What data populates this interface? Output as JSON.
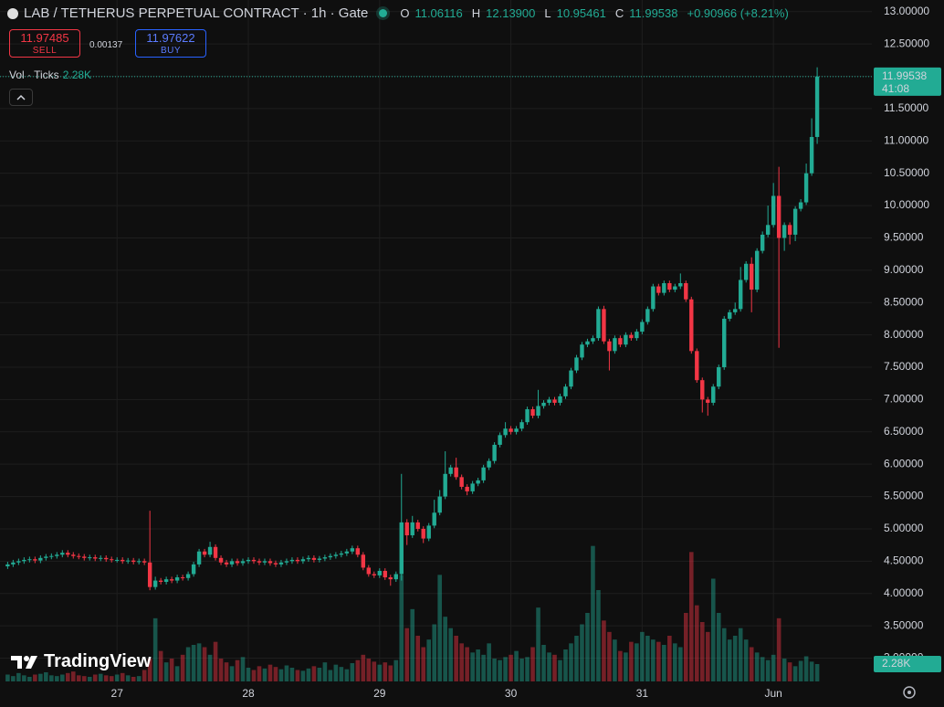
{
  "header": {
    "symbol": "LAB / TETHERUS PERPETUAL CONTRACT · 1h · Gate",
    "ohlc": [
      {
        "key": "O",
        "value": "11.06116"
      },
      {
        "key": "H",
        "value": "12.13900"
      },
      {
        "key": "L",
        "value": "10.95461"
      },
      {
        "key": "C",
        "value": "11.99538"
      }
    ],
    "change": "+0.90966 (+8.21%)"
  },
  "trade": {
    "sell_price": "11.97485",
    "sell_label": "SELL",
    "spread": "0.00137",
    "buy_price": "11.97622",
    "buy_label": "BUY"
  },
  "volume_legend": {
    "label": "Vol · Ticks",
    "value": "2.28K"
  },
  "brand": "TradingView",
  "chart_data": {
    "type": "candlestick",
    "candles": [
      [
        4.42,
        4.49,
        4.38,
        4.45,
        900
      ],
      [
        4.45,
        4.52,
        4.41,
        4.48,
        700
      ],
      [
        4.48,
        4.54,
        4.44,
        4.5,
        1100
      ],
      [
        4.5,
        4.56,
        4.46,
        4.52,
        800
      ],
      [
        4.52,
        4.57,
        4.48,
        4.53,
        600
      ],
      [
        4.53,
        4.57,
        4.47,
        4.51,
        900
      ],
      [
        4.51,
        4.59,
        4.47,
        4.55,
        1000
      ],
      [
        4.55,
        4.61,
        4.51,
        4.57,
        1200
      ],
      [
        4.57,
        4.62,
        4.53,
        4.58,
        800
      ],
      [
        4.58,
        4.64,
        4.54,
        4.6,
        700
      ],
      [
        4.6,
        4.67,
        4.56,
        4.63,
        900
      ],
      [
        4.63,
        4.67,
        4.56,
        4.6,
        1100
      ],
      [
        4.6,
        4.64,
        4.54,
        4.58,
        1300
      ],
      [
        4.58,
        4.62,
        4.53,
        4.57,
        800
      ],
      [
        4.57,
        4.61,
        4.51,
        4.55,
        700
      ],
      [
        4.55,
        4.6,
        4.51,
        4.56,
        600
      ],
      [
        4.56,
        4.6,
        4.5,
        4.54,
        900
      ],
      [
        4.54,
        4.59,
        4.5,
        4.55,
        1000
      ],
      [
        4.55,
        4.59,
        4.49,
        4.53,
        800
      ],
      [
        4.53,
        4.57,
        4.48,
        4.52,
        700
      ],
      [
        4.52,
        4.56,
        4.48,
        4.52,
        900
      ],
      [
        4.52,
        4.56,
        4.46,
        4.5,
        1100
      ],
      [
        4.5,
        4.55,
        4.46,
        4.51,
        800
      ],
      [
        4.51,
        4.55,
        4.45,
        4.49,
        600
      ],
      [
        4.49,
        4.54,
        4.45,
        4.5,
        700
      ],
      [
        4.5,
        4.54,
        4.44,
        4.48,
        1500
      ],
      [
        4.48,
        5.28,
        4.05,
        4.1,
        3000
      ],
      [
        4.1,
        4.26,
        4.06,
        4.2,
        8300
      ],
      [
        4.2,
        4.24,
        4.14,
        4.18,
        4000
      ],
      [
        4.18,
        4.26,
        4.14,
        4.22,
        2500
      ],
      [
        4.22,
        4.26,
        4.16,
        4.2,
        3000
      ],
      [
        4.2,
        4.29,
        4.16,
        4.25,
        2000
      ],
      [
        4.25,
        4.29,
        4.2,
        4.24,
        3500
      ],
      [
        4.24,
        4.34,
        4.2,
        4.3,
        4500
      ],
      [
        4.3,
        4.49,
        4.26,
        4.45,
        4800
      ],
      [
        4.45,
        4.69,
        4.41,
        4.65,
        5000
      ],
      [
        4.65,
        4.69,
        4.56,
        4.6,
        4500
      ],
      [
        4.6,
        4.8,
        4.56,
        4.72,
        3500
      ],
      [
        4.72,
        4.76,
        4.51,
        4.55,
        5200
      ],
      [
        4.55,
        4.59,
        4.44,
        4.48,
        3000
      ],
      [
        4.48,
        4.52,
        4.41,
        4.45,
        2500
      ],
      [
        4.45,
        4.54,
        4.41,
        4.5,
        2000
      ],
      [
        4.5,
        4.54,
        4.43,
        4.47,
        2800
      ],
      [
        4.47,
        4.54,
        4.43,
        4.5,
        3200
      ],
      [
        4.5,
        4.56,
        4.46,
        4.52,
        1800
      ],
      [
        4.52,
        4.56,
        4.46,
        4.5,
        1500
      ],
      [
        4.5,
        4.54,
        4.44,
        4.48,
        2000
      ],
      [
        4.48,
        4.54,
        4.44,
        4.5,
        1700
      ],
      [
        4.5,
        4.54,
        4.43,
        4.47,
        2200
      ],
      [
        4.47,
        4.51,
        4.41,
        4.45,
        1900
      ],
      [
        4.45,
        4.52,
        4.41,
        4.48,
        1600
      ],
      [
        4.48,
        4.54,
        4.44,
        4.5,
        2100
      ],
      [
        4.5,
        4.56,
        4.46,
        4.52,
        1800
      ],
      [
        4.52,
        4.56,
        4.46,
        4.5,
        1500
      ],
      [
        4.5,
        4.57,
        4.46,
        4.53,
        1400
      ],
      [
        4.53,
        4.59,
        4.49,
        4.55,
        1700
      ],
      [
        4.55,
        4.59,
        4.48,
        4.52,
        2000
      ],
      [
        4.52,
        4.58,
        4.48,
        4.54,
        1800
      ],
      [
        4.54,
        4.6,
        4.5,
        4.56,
        2500
      ],
      [
        4.56,
        4.62,
        4.52,
        4.58,
        1500
      ],
      [
        4.58,
        4.64,
        4.54,
        4.6,
        2200
      ],
      [
        4.6,
        4.66,
        4.56,
        4.62,
        1900
      ],
      [
        4.62,
        4.69,
        4.58,
        4.65,
        1600
      ],
      [
        4.65,
        4.74,
        4.61,
        4.7,
        2400
      ],
      [
        4.7,
        4.74,
        4.56,
        4.6,
        2800
      ],
      [
        4.6,
        4.64,
        4.36,
        4.4,
        3500
      ],
      [
        4.4,
        4.44,
        4.26,
        4.3,
        3000
      ],
      [
        4.3,
        4.34,
        4.24,
        4.28,
        2600
      ],
      [
        4.28,
        4.39,
        4.24,
        4.35,
        2200
      ],
      [
        4.35,
        4.39,
        4.21,
        4.25,
        2500
      ],
      [
        4.25,
        4.29,
        4.12,
        4.22,
        2100
      ],
      [
        4.22,
        4.34,
        4.18,
        4.3,
        2800
      ],
      [
        4.3,
        5.85,
        4.2,
        5.1,
        14000
      ],
      [
        5.1,
        5.15,
        4.75,
        4.9,
        7000
      ],
      [
        4.9,
        5.2,
        4.86,
        5.1,
        9500
      ],
      [
        5.1,
        5.14,
        4.96,
        5.0,
        6000
      ],
      [
        5.0,
        5.04,
        4.78,
        4.85,
        4500
      ],
      [
        4.85,
        5.09,
        4.81,
        5.05,
        5500
      ],
      [
        5.05,
        5.45,
        5.01,
        5.25,
        7500
      ],
      [
        5.25,
        5.6,
        5.21,
        5.5,
        14000
      ],
      [
        5.5,
        6.2,
        5.46,
        5.85,
        8500
      ],
      [
        5.85,
        5.99,
        5.81,
        5.95,
        7000
      ],
      [
        5.95,
        6.1,
        5.76,
        5.8,
        6000
      ],
      [
        5.8,
        5.84,
        5.61,
        5.65,
        5000
      ],
      [
        5.65,
        5.69,
        5.52,
        5.58,
        4500
      ],
      [
        5.58,
        5.74,
        5.54,
        5.7,
        3800
      ],
      [
        5.7,
        5.79,
        5.66,
        5.75,
        4200
      ],
      [
        5.75,
        5.99,
        5.71,
        5.95,
        3500
      ],
      [
        5.95,
        6.09,
        5.91,
        6.05,
        5000
      ],
      [
        6.05,
        6.34,
        6.01,
        6.3,
        3000
      ],
      [
        6.3,
        6.49,
        6.26,
        6.45,
        2800
      ],
      [
        6.45,
        6.65,
        6.41,
        6.55,
        3200
      ],
      [
        6.55,
        6.59,
        6.46,
        6.5,
        3500
      ],
      [
        6.5,
        6.59,
        6.46,
        6.55,
        4000
      ],
      [
        6.55,
        6.69,
        6.51,
        6.65,
        3000
      ],
      [
        6.65,
        6.89,
        6.61,
        6.85,
        3200
      ],
      [
        6.85,
        6.89,
        6.71,
        6.75,
        4500
      ],
      [
        6.75,
        7.15,
        6.71,
        6.9,
        9700
      ],
      [
        6.9,
        6.99,
        6.86,
        6.95,
        4800
      ],
      [
        6.95,
        7.04,
        6.91,
        7.0,
        3800
      ],
      [
        7.0,
        7.04,
        6.91,
        6.95,
        3500
      ],
      [
        6.95,
        7.09,
        6.91,
        7.05,
        2800
      ],
      [
        7.05,
        7.24,
        7.01,
        7.2,
        4200
      ],
      [
        7.2,
        7.49,
        7.16,
        7.45,
        5000
      ],
      [
        7.45,
        7.69,
        7.41,
        7.65,
        6000
      ],
      [
        7.65,
        7.89,
        7.61,
        7.85,
        7500
      ],
      [
        7.85,
        7.94,
        7.81,
        7.9,
        9000
      ],
      [
        7.9,
        7.99,
        7.86,
        7.95,
        17800
      ],
      [
        7.95,
        8.44,
        7.91,
        8.4,
        12000
      ],
      [
        8.4,
        8.45,
        7.86,
        7.9,
        8000
      ],
      [
        7.9,
        7.94,
        7.45,
        7.75,
        6500
      ],
      [
        7.75,
        7.99,
        7.71,
        7.95,
        5500
      ],
      [
        7.95,
        7.99,
        7.81,
        7.85,
        4000
      ],
      [
        7.85,
        8.04,
        7.81,
        8.0,
        3800
      ],
      [
        8.0,
        8.04,
        7.91,
        7.95,
        5200
      ],
      [
        7.95,
        8.09,
        7.91,
        8.05,
        5000
      ],
      [
        8.05,
        8.24,
        8.01,
        8.2,
        6500
      ],
      [
        8.2,
        8.44,
        8.16,
        8.4,
        6000
      ],
      [
        8.4,
        8.79,
        8.36,
        8.75,
        5500
      ],
      [
        8.75,
        8.79,
        8.61,
        8.65,
        5200
      ],
      [
        8.65,
        8.84,
        8.61,
        8.8,
        4800
      ],
      [
        8.8,
        8.84,
        8.66,
        8.7,
        6000
      ],
      [
        8.7,
        8.79,
        8.66,
        8.75,
        5000
      ],
      [
        8.75,
        8.95,
        8.71,
        8.8,
        4500
      ],
      [
        8.8,
        8.84,
        8.51,
        8.55,
        9000
      ],
      [
        8.55,
        8.59,
        7.71,
        7.75,
        17000
      ],
      [
        7.75,
        7.79,
        7.26,
        7.3,
        10000
      ],
      [
        7.3,
        7.34,
        6.8,
        7.0,
        7800
      ],
      [
        7.0,
        7.04,
        6.75,
        6.95,
        6500
      ],
      [
        6.95,
        7.24,
        6.91,
        7.2,
        13500
      ],
      [
        7.2,
        7.54,
        7.16,
        7.5,
        9000
      ],
      [
        7.5,
        8.29,
        7.46,
        8.25,
        7000
      ],
      [
        8.25,
        8.39,
        8.21,
        8.35,
        5500
      ],
      [
        8.35,
        8.5,
        8.31,
        8.4,
        6000
      ],
      [
        8.4,
        9.05,
        8.36,
        8.85,
        7000
      ],
      [
        8.85,
        9.14,
        8.81,
        9.1,
        5500
      ],
      [
        9.1,
        9.2,
        8.35,
        8.7,
        4500
      ],
      [
        8.7,
        9.34,
        8.66,
        9.3,
        3800
      ],
      [
        9.3,
        9.6,
        9.26,
        9.55,
        3200
      ],
      [
        9.55,
        10.0,
        9.51,
        9.7,
        2800
      ],
      [
        9.7,
        10.35,
        9.66,
        10.15,
        3500
      ],
      [
        10.15,
        10.6,
        7.8,
        9.5,
        8300
      ],
      [
        9.5,
        9.74,
        9.3,
        9.7,
        3000
      ],
      [
        9.7,
        9.74,
        9.4,
        9.55,
        2500
      ],
      [
        9.55,
        9.99,
        9.45,
        9.95,
        2000
      ],
      [
        9.95,
        10.1,
        9.91,
        10.05,
        2700
      ],
      [
        10.05,
        10.65,
        10.01,
        10.5,
        3300
      ],
      [
        10.5,
        11.35,
        10.46,
        11.06116,
        2600
      ],
      [
        11.06116,
        12.139,
        10.95461,
        11.99538,
        2280
      ]
    ],
    "xlim": [
      -1.4,
      158
    ],
    "xticks": [
      {
        "value": 20,
        "label": "27"
      },
      {
        "value": 44,
        "label": "28"
      },
      {
        "value": 68,
        "label": "29"
      },
      {
        "value": 92,
        "label": "30"
      },
      {
        "value": 116,
        "label": "31"
      },
      {
        "value": 140,
        "label": "Jun"
      }
    ],
    "ylim": [
      2.64,
      13.18
    ],
    "yticks": [
      {
        "value": 13,
        "label": "13.00000"
      },
      {
        "value": 12.5,
        "label": "12.50000"
      },
      {
        "value": 12,
        "label": "12.00000"
      },
      {
        "value": 11.5,
        "label": "11.50000"
      },
      {
        "value": 11,
        "label": "11.00000"
      },
      {
        "value": 10.5,
        "label": "10.50000"
      },
      {
        "value": 10,
        "label": "10.00000"
      },
      {
        "value": 9.5,
        "label": "9.50000"
      },
      {
        "value": 9,
        "label": "9.00000"
      },
      {
        "value": 8.5,
        "label": "8.50000"
      },
      {
        "value": 8,
        "label": "8.00000"
      },
      {
        "value": 7.5,
        "label": "7.50000"
      },
      {
        "value": 7,
        "label": "7.00000"
      },
      {
        "value": 6.5,
        "label": "6.50000"
      },
      {
        "value": 6,
        "label": "6.00000"
      },
      {
        "value": 5.5,
        "label": "5.50000"
      },
      {
        "value": 5,
        "label": "5.00000"
      },
      {
        "value": 4.5,
        "label": "4.50000"
      },
      {
        "value": 4,
        "label": "4.00000"
      },
      {
        "value": 3.5,
        "label": "3.50000"
      },
      {
        "value": 3,
        "label": "3.00000"
      }
    ],
    "volume_ylim": [
      0,
      20400
    ],
    "up_color": "#22ab94",
    "down_color": "#f23645",
    "grid": true,
    "last_price_label": "11.99538",
    "countdown": "41:08",
    "volume_label": "2.28K"
  }
}
